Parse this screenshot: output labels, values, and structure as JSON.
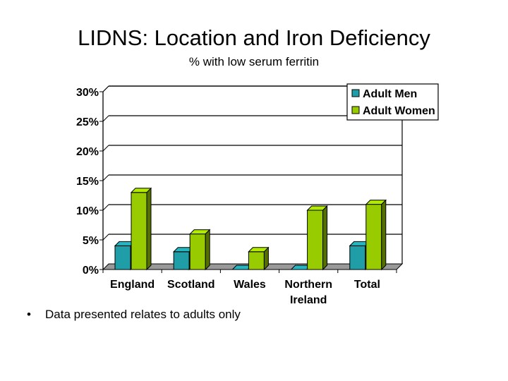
{
  "slide": {
    "title": "LIDNS: Location and Iron Deficiency",
    "subtitle": "% with low serum ferritin",
    "bullet": "Data presented relates to adults only"
  },
  "chart_data": {
    "type": "bar",
    "categories": [
      "England",
      "Scotland",
      "Wales",
      "Northern Ireland",
      "Total"
    ],
    "series": [
      {
        "name": "Adult Men",
        "values": [
          4,
          3,
          0,
          0,
          4
        ],
        "color": "#1f9ea8"
      },
      {
        "name": "Adult Women",
        "values": [
          13,
          6,
          3,
          10,
          11
        ],
        "color": "#99cc00"
      }
    ],
    "y_ticks": [
      "0%",
      "5%",
      "10%",
      "15%",
      "20%",
      "25%",
      "30%"
    ],
    "ylim": [
      0,
      30
    ],
    "grid": true,
    "legend_position": "top-right",
    "style": "3d"
  }
}
